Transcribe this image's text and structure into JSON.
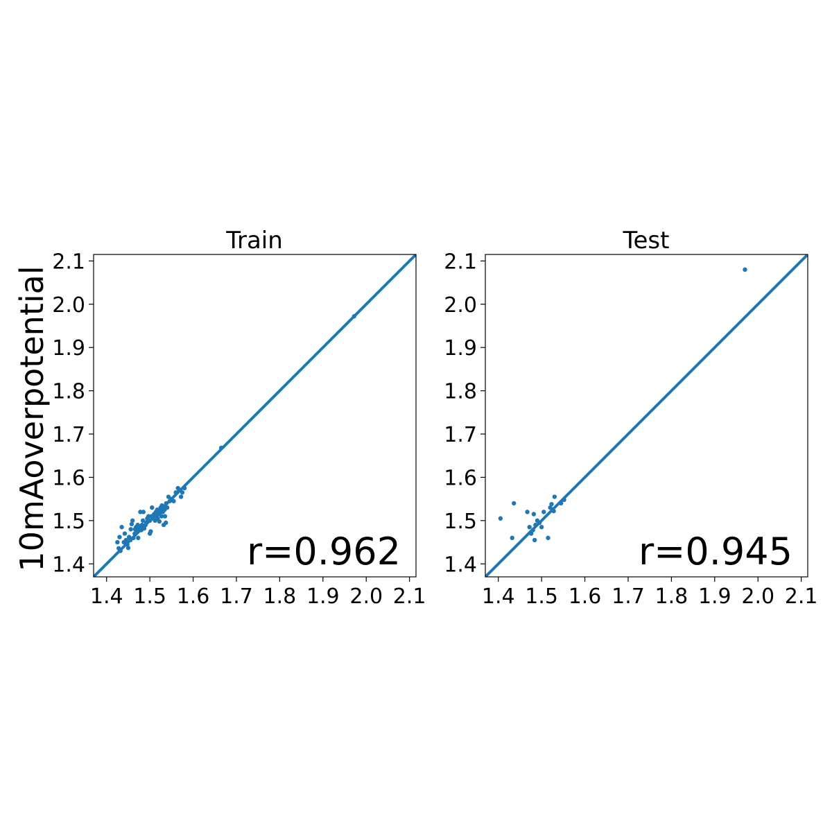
{
  "ylabel": "10mAoverpotential",
  "chart_data": [
    {
      "type": "scatter",
      "title": "Train",
      "annotation": "r=0.962",
      "xlim": [
        1.37,
        2.115
      ],
      "ylim": [
        1.37,
        2.115
      ],
      "xticks": [
        "1.4",
        "1.5",
        "1.6",
        "1.7",
        "1.8",
        "1.9",
        "2.0",
        "2.1"
      ],
      "yticks": [
        "1.4",
        "1.5",
        "1.6",
        "1.7",
        "1.8",
        "1.9",
        "2.0",
        "2.1"
      ],
      "color": "#1f77b4",
      "identity_line": true,
      "points": [
        [
          1.425,
          1.45
        ],
        [
          1.428,
          1.436
        ],
        [
          1.43,
          1.462
        ],
        [
          1.432,
          1.43
        ],
        [
          1.435,
          1.485
        ],
        [
          1.44,
          1.45
        ],
        [
          1.442,
          1.47
        ],
        [
          1.445,
          1.455
        ],
        [
          1.448,
          1.445
        ],
        [
          1.45,
          1.437
        ],
        [
          1.452,
          1.462
        ],
        [
          1.455,
          1.455
        ],
        [
          1.456,
          1.48
        ],
        [
          1.458,
          1.492
        ],
        [
          1.46,
          1.5
        ],
        [
          1.462,
          1.46
        ],
        [
          1.465,
          1.47
        ],
        [
          1.466,
          1.48
        ],
        [
          1.468,
          1.485
        ],
        [
          1.47,
          1.475
        ],
        [
          1.472,
          1.49
        ],
        [
          1.473,
          1.46
        ],
        [
          1.475,
          1.48
        ],
        [
          1.476,
          1.485
        ],
        [
          1.478,
          1.52
        ],
        [
          1.48,
          1.478
        ],
        [
          1.482,
          1.49
        ],
        [
          1.484,
          1.5
        ],
        [
          1.485,
          1.52
        ],
        [
          1.487,
          1.482
        ],
        [
          1.49,
          1.49
        ],
        [
          1.492,
          1.495
        ],
        [
          1.494,
          1.505
        ],
        [
          1.495,
          1.5
        ],
        [
          1.497,
          1.51
        ],
        [
          1.5,
          1.47
        ],
        [
          1.5,
          1.5
        ],
        [
          1.502,
          1.475
        ],
        [
          1.504,
          1.51
        ],
        [
          1.505,
          1.53
        ],
        [
          1.507,
          1.505
        ],
        [
          1.51,
          1.515
        ],
        [
          1.512,
          1.5
        ],
        [
          1.514,
          1.52
        ],
        [
          1.515,
          1.51
        ],
        [
          1.517,
          1.525
        ],
        [
          1.518,
          1.505
        ],
        [
          1.52,
          1.515
        ],
        [
          1.522,
          1.498
        ],
        [
          1.524,
          1.52
        ],
        [
          1.525,
          1.53
        ],
        [
          1.527,
          1.51
        ],
        [
          1.528,
          1.535
        ],
        [
          1.53,
          1.52
        ],
        [
          1.532,
          1.49
        ],
        [
          1.534,
          1.525
        ],
        [
          1.535,
          1.51
        ],
        [
          1.537,
          1.495
        ],
        [
          1.538,
          1.54
        ],
        [
          1.54,
          1.53
        ],
        [
          1.543,
          1.555
        ],
        [
          1.546,
          1.545
        ],
        [
          1.55,
          1.55
        ],
        [
          1.555,
          1.545
        ],
        [
          1.56,
          1.565
        ],
        [
          1.565,
          1.575
        ],
        [
          1.568,
          1.57
        ],
        [
          1.572,
          1.555
        ],
        [
          1.575,
          1.565
        ],
        [
          1.58,
          1.575
        ],
        [
          1.665,
          1.668
        ],
        [
          1.972,
          1.972
        ]
      ]
    },
    {
      "type": "scatter",
      "title": "Test",
      "annotation": "r=0.945",
      "xlim": [
        1.37,
        2.115
      ],
      "ylim": [
        1.37,
        2.115
      ],
      "xticks": [
        "1.4",
        "1.5",
        "1.6",
        "1.7",
        "1.8",
        "1.9",
        "2.0",
        "2.1"
      ],
      "yticks": [
        "1.4",
        "1.5",
        "1.6",
        "1.7",
        "1.8",
        "1.9",
        "2.0",
        "2.1"
      ],
      "color": "#1f77b4",
      "identity_line": true,
      "points": [
        [
          1.405,
          1.505
        ],
        [
          1.432,
          1.46
        ],
        [
          1.436,
          1.54
        ],
        [
          1.467,
          1.52
        ],
        [
          1.472,
          1.485
        ],
        [
          1.476,
          1.47
        ],
        [
          1.48,
          1.478
        ],
        [
          1.482,
          1.515
        ],
        [
          1.484,
          1.455
        ],
        [
          1.486,
          1.49
        ],
        [
          1.49,
          1.5
        ],
        [
          1.495,
          1.495
        ],
        [
          1.5,
          1.485
        ],
        [
          1.505,
          1.52
        ],
        [
          1.515,
          1.46
        ],
        [
          1.52,
          1.53
        ],
        [
          1.523,
          1.538
        ],
        [
          1.528,
          1.522
        ],
        [
          1.53,
          1.555
        ],
        [
          1.545,
          1.54
        ],
        [
          1.552,
          1.548
        ],
        [
          1.97,
          2.08
        ]
      ]
    }
  ]
}
